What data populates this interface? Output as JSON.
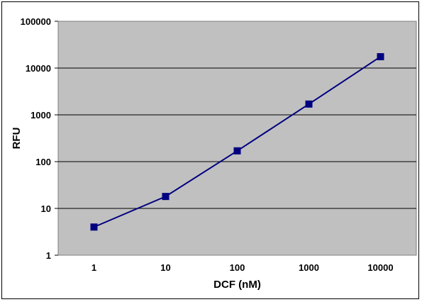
{
  "chart_data": {
    "type": "line",
    "x_scale": "log",
    "y_scale": "log",
    "xlabel": "DCF (nM)",
    "ylabel": "RFU",
    "x_categories": [
      "1",
      "10",
      "100",
      "1000",
      "10000"
    ],
    "y_ticks": [
      "1",
      "10",
      "100",
      "1000",
      "10000",
      "100000"
    ],
    "ylim": [
      1,
      100000
    ],
    "grid": "horizontal",
    "plot_background": "#c0c0c0",
    "series": [
      {
        "color": "#000080",
        "marker": "square",
        "x": [
          1,
          10,
          100,
          1000,
          10000
        ],
        "y": [
          4,
          18,
          170,
          1700,
          17500
        ]
      }
    ]
  }
}
